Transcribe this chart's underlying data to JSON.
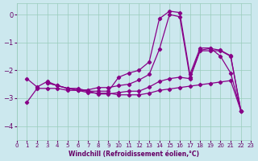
{
  "bg_color": "#cce8ee",
  "line_color": "#880088",
  "grid_color": "#99ccbb",
  "xlabel": "Windchill (Refroidissement éolien,°C)",
  "xlim": [
    0,
    23
  ],
  "ylim": [
    -4.5,
    0.4
  ],
  "yticks": [
    0,
    -1,
    -2,
    -3,
    -4
  ],
  "xticks": [
    0,
    1,
    2,
    3,
    4,
    5,
    6,
    7,
    8,
    9,
    10,
    11,
    12,
    13,
    14,
    15,
    16,
    17,
    18,
    19,
    20,
    21,
    22,
    23
  ],
  "series": [
    [
      null,
      -2.3,
      -2.6,
      -2.4,
      -2.55,
      -2.65,
      -2.65,
      -2.75,
      -2.75,
      -2.75,
      -2.25,
      -2.1,
      -2.0,
      -1.7,
      -0.15,
      0.12,
      0.07,
      -2.15,
      -1.2,
      -1.2,
      -1.5,
      -2.1,
      -3.45,
      null
    ],
    [
      null,
      null,
      null,
      -2.45,
      -2.55,
      -2.65,
      -2.7,
      -2.75,
      -2.85,
      -2.85,
      -2.8,
      -2.75,
      -2.75,
      -2.6,
      -2.4,
      -2.3,
      -2.25,
      -2.3,
      -1.3,
      -1.3,
      -1.3,
      -1.5,
      -3.45,
      null
    ],
    [
      null,
      -3.15,
      -2.65,
      -2.65,
      -2.65,
      -2.72,
      -2.72,
      -2.8,
      -2.82,
      -2.82,
      -2.88,
      -2.88,
      -2.88,
      -2.82,
      -2.72,
      -2.67,
      -2.62,
      -2.57,
      -2.52,
      -2.47,
      -2.42,
      -2.37,
      -3.45,
      null
    ],
    [
      null,
      null,
      null,
      -2.45,
      -2.55,
      -2.65,
      -2.72,
      -2.7,
      -2.62,
      -2.62,
      -2.55,
      -2.5,
      -2.35,
      -2.15,
      -1.25,
      -0.0,
      -0.08,
      -2.25,
      -1.28,
      -1.22,
      -1.28,
      -1.48,
      -3.45,
      null
    ]
  ]
}
